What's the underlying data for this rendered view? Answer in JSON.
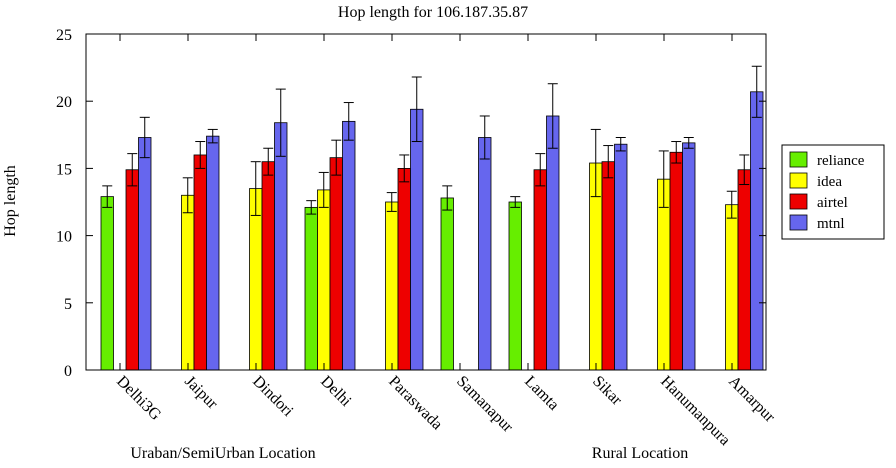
{
  "chart_data": {
    "type": "bar",
    "title": "Hop length for 106.187.35.87",
    "ylabel": "Hop length",
    "xlabel": "",
    "ylim": [
      0,
      25
    ],
    "yticks": [
      0,
      5,
      10,
      15,
      20,
      25
    ],
    "categories": [
      "Delhi3G",
      "Jaipur",
      "Dindori",
      "Delhi",
      "Paraswada",
      "Samanapur",
      "Lamta",
      "Sikar",
      "Hanumanpura",
      "Amarpur"
    ],
    "series": [
      {
        "name": "reliance",
        "color": "#66ee00",
        "values": [
          12.9,
          null,
          null,
          12.1,
          null,
          12.8,
          12.5,
          null,
          null,
          null
        ],
        "errors": [
          0.8,
          null,
          null,
          0.5,
          null,
          0.9,
          0.4,
          null,
          null,
          null
        ]
      },
      {
        "name": "idea",
        "color": "#ffff00",
        "values": [
          null,
          13.0,
          13.5,
          13.4,
          12.5,
          null,
          null,
          15.4,
          14.2,
          12.3
        ],
        "errors": [
          null,
          1.3,
          2.0,
          1.3,
          0.7,
          null,
          null,
          2.5,
          2.1,
          1.0
        ]
      },
      {
        "name": "airtel",
        "color": "#ee0000",
        "values": [
          14.9,
          16.0,
          15.5,
          15.8,
          15.0,
          null,
          14.9,
          15.5,
          16.2,
          14.9
        ],
        "errors": [
          1.2,
          1.0,
          1.0,
          1.3,
          1.0,
          null,
          1.2,
          1.2,
          0.8,
          1.1
        ]
      },
      {
        "name": "mtnl",
        "color": "#6666ee",
        "values": [
          17.3,
          17.4,
          18.4,
          18.5,
          19.4,
          17.3,
          18.9,
          16.8,
          16.9,
          20.7
        ],
        "errors": [
          1.5,
          0.5,
          2.5,
          1.4,
          2.4,
          1.6,
          2.4,
          0.5,
          0.4,
          1.9
        ]
      }
    ],
    "groups": [
      {
        "label": "Uraban/SemiUrban Location"
      },
      {
        "label": "Rural Location"
      }
    ],
    "legend_position": "right",
    "grid": false
  }
}
